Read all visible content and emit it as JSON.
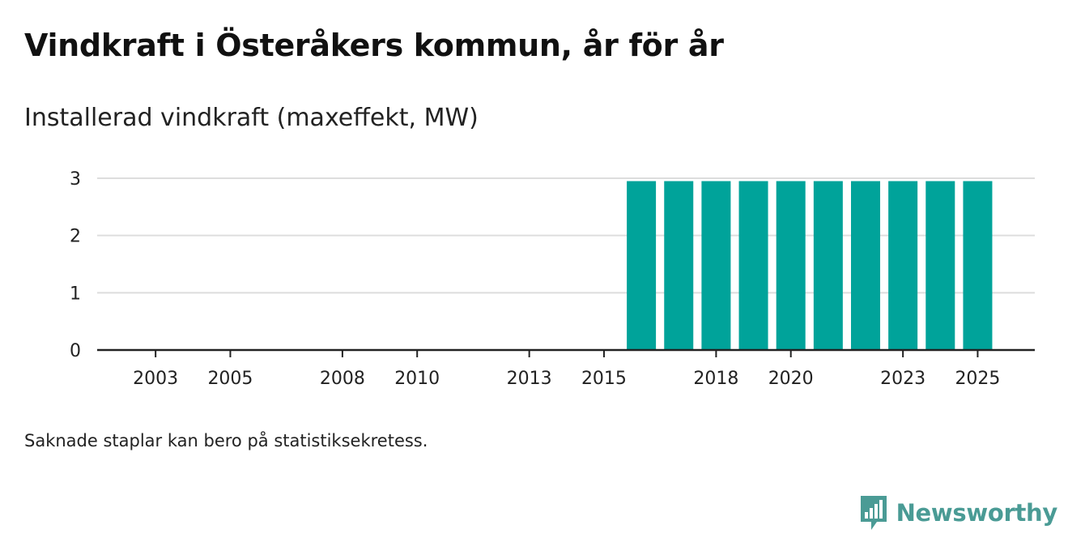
{
  "title": "Vindkraft i Österåkers kommun, år för år",
  "subtitle": "Installerad vindkraft (maxeffekt, MW)",
  "footnote": "Saknade staplar kan bero på statistiksekretess.",
  "brand": {
    "name": "Newsworthy",
    "icon": "newsworthy-logo-icon"
  },
  "colors": {
    "bar": "#00a39a",
    "grid": "#dddddd",
    "axis": "#222222",
    "brand": "#4a9b95"
  },
  "chart_data": {
    "type": "bar",
    "title": "Installerad vindkraft (maxeffekt, MW)",
    "xlabel": "",
    "ylabel": "",
    "categories": [
      2002,
      2003,
      2004,
      2005,
      2006,
      2007,
      2008,
      2009,
      2010,
      2011,
      2012,
      2013,
      2014,
      2015,
      2016,
      2017,
      2018,
      2019,
      2020,
      2021,
      2022,
      2023,
      2024,
      2025
    ],
    "values": [
      0,
      0,
      0,
      0,
      0,
      0,
      0,
      0,
      0,
      0,
      0,
      0,
      0,
      0,
      2.95,
      2.95,
      2.95,
      2.95,
      2.95,
      2.95,
      2.95,
      2.95,
      2.95,
      2.95
    ],
    "x_tick_labels": [
      "2003",
      "2005",
      "2008",
      "2010",
      "2013",
      "2015",
      "2018",
      "2020",
      "2023",
      "2025"
    ],
    "y_ticks": [
      0,
      1,
      2,
      3
    ],
    "ylim": [
      0,
      3
    ],
    "grid": true
  }
}
